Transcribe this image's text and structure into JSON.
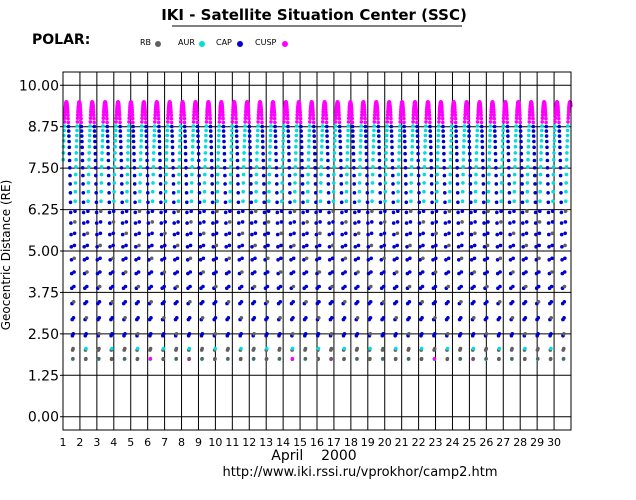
{
  "chart_data": {
    "type": "scatter",
    "title": "IKI - Satellite Situation Center (SSC)",
    "satellite": "POLAR:",
    "ylabel": "Geocentric Distance (RE)",
    "xlabel": "April    2000",
    "url": "http://www.iki.rssi.ru/vprokhor/camp2.htm",
    "ylim": [
      0,
      10
    ],
    "xlim": [
      1,
      31
    ],
    "yticks": [
      "10.00",
      "8.75",
      "7.50",
      "6.25",
      "5.00",
      "3.75",
      "2.50",
      "1.25",
      "0.00"
    ],
    "ytick_values": [
      10,
      8.75,
      7.5,
      6.25,
      5.0,
      3.75,
      2.5,
      1.25,
      0
    ],
    "xticks": [
      "1",
      "2",
      "3",
      "4",
      "5",
      "6",
      "7",
      "8",
      "9",
      "10",
      "11",
      "12",
      "13",
      "14",
      "15",
      "16",
      "17",
      "18",
      "19",
      "20",
      "21",
      "22",
      "23",
      "24",
      "25",
      "26",
      "27",
      "28",
      "29",
      "30"
    ],
    "xtick_values": [
      1,
      2,
      3,
      4,
      5,
      6,
      7,
      8,
      9,
      10,
      11,
      12,
      13,
      14,
      15,
      16,
      17,
      18,
      19,
      20,
      21,
      22,
      23,
      24,
      25,
      26,
      27,
      28,
      29,
      30
    ],
    "legend": [
      {
        "name": "RB",
        "color": "#606060"
      },
      {
        "name": "AUR",
        "color": "#00dede"
      },
      {
        "name": "CAP",
        "color": "#0000d0"
      },
      {
        "name": "CUSP",
        "color": "#ff00ff"
      }
    ],
    "orbit": {
      "period_days": 0.7625,
      "first_apogee_day": 1.2,
      "apogee_RE": 9.5,
      "perigee_RE": 1.7
    },
    "grid": "horizontal lines at ticks; vertical lines at each day",
    "legend_position": "top"
  }
}
